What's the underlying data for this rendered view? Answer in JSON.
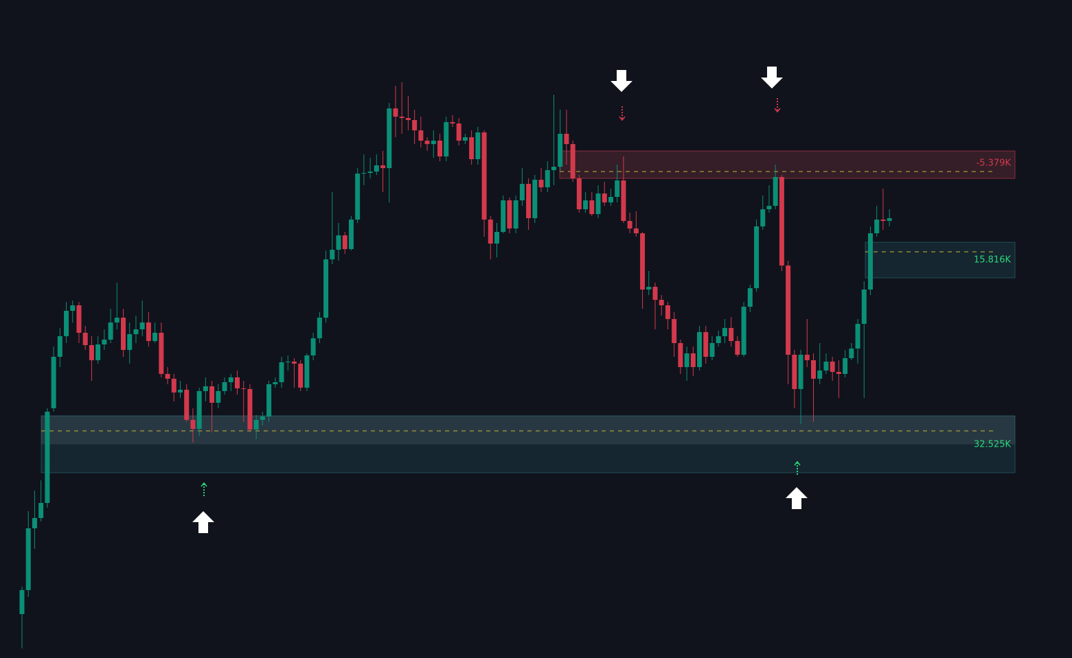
{
  "chart_data": {
    "type": "candlestick",
    "open": [
      105,
      140,
      230,
      245,
      267,
      405,
      480,
      510,
      547,
      555,
      515,
      497,
      475,
      498,
      505,
      530,
      537,
      490,
      513,
      520,
      530,
      503,
      515,
      455,
      448,
      428,
      432,
      388,
      375,
      430,
      437,
      413,
      430,
      443,
      450,
      434,
      433,
      374,
      388,
      393,
      440,
      443,
      472,
      473,
      470,
      435,
      482,
      507,
      537,
      622,
      636,
      657,
      637,
      680,
      747,
      748,
      750,
      759,
      755,
      842,
      830,
      828,
      825,
      810,
      795,
      790,
      795,
      772,
      822,
      820,
      795,
      800,
      768,
      807,
      680,
      645,
      662,
      708,
      667,
      708,
      732,
      682,
      738,
      727,
      752,
      757,
      805,
      790,
      740,
      695,
      708,
      688,
      718,
      705,
      713,
      737,
      678,
      667,
      660,
      578,
      582,
      563,
      555,
      535,
      500,
      465,
      485,
      465,
      516,
      480,
      500,
      510,
      522,
      503,
      483,
      553,
      580,
      670,
      695,
      700,
      742,
      613,
      483,
      433,
      483,
      475,
      448,
      460,
      473,
      458,
      455,
      478,
      492,
      528,
      578,
      660,
      680,
      678
    ],
    "high": [
      145,
      255,
      285,
      300,
      405,
      495,
      522,
      560,
      562,
      560,
      525,
      510,
      510,
      520,
      550,
      588,
      550,
      530,
      540,
      562,
      545,
      530,
      530,
      465,
      455,
      445,
      440,
      405,
      435,
      450,
      445,
      440,
      450,
      455,
      460,
      445,
      440,
      395,
      400,
      445,
      450,
      480,
      482,
      478,
      475,
      485,
      515,
      545,
      635,
      720,
      675,
      662,
      685,
      755,
      775,
      770,
      775,
      780,
      850,
      875,
      880,
      860,
      840,
      830,
      800,
      810,
      805,
      830,
      832,
      828,
      805,
      810,
      815,
      810,
      685,
      675,
      715,
      712,
      715,
      755,
      740,
      745,
      755,
      765,
      862,
      840,
      840,
      795,
      745,
      720,
      720,
      730,
      735,
      725,
      760,
      772,
      690,
      692,
      662,
      605,
      588,
      570,
      560,
      545,
      505,
      495,
      495,
      525,
      525,
      510,
      518,
      535,
      538,
      510,
      560,
      585,
      680,
      715,
      730,
      760,
      745,
      620,
      490,
      490,
      535,
      485,
      500,
      485,
      480,
      475,
      490,
      500,
      535,
      590,
      670,
      700,
      725,
      695
    ],
    "low": [
      55,
      130,
      200,
      240,
      260,
      400,
      465,
      500,
      530,
      500,
      490,
      445,
      470,
      490,
      500,
      520,
      480,
      470,
      500,
      510,
      495,
      500,
      450,
      440,
      415,
      420,
      385,
      355,
      365,
      415,
      370,
      405,
      425,
      430,
      425,
      385,
      370,
      360,
      380,
      385,
      435,
      435,
      460,
      435,
      430,
      430,
      475,
      500,
      530,
      615,
      620,
      630,
      635,
      675,
      730,
      740,
      745,
      720,
      705,
      800,
      805,
      810,
      790,
      785,
      780,
      770,
      765,
      765,
      815,
      788,
      790,
      760,
      760,
      655,
      622,
      625,
      660,
      660,
      660,
      700,
      665,
      675,
      720,
      720,
      730,
      750,
      760,
      735,
      690,
      690,
      685,
      682,
      700,
      700,
      705,
      675,
      660,
      655,
      550,
      570,
      520,
      540,
      520,
      480,
      455,
      445,
      452,
      460,
      470,
      475,
      495,
      500,
      495,
      480,
      480,
      545,
      575,
      665,
      690,
      695,
      605,
      440,
      405,
      382,
      465,
      385,
      440,
      455,
      445,
      420,
      450,
      475,
      470,
      420,
      570,
      655,
      665,
      670
    ],
    "close": [
      140,
      230,
      245,
      267,
      400,
      480,
      510,
      547,
      555,
      515,
      497,
      475,
      498,
      505,
      530,
      537,
      490,
      513,
      520,
      530,
      503,
      515,
      455,
      448,
      428,
      432,
      388,
      375,
      430,
      437,
      413,
      430,
      443,
      450,
      434,
      433,
      374,
      388,
      393,
      440,
      443,
      472,
      473,
      470,
      435,
      482,
      507,
      537,
      622,
      636,
      657,
      637,
      680,
      747,
      748,
      750,
      759,
      755,
      842,
      830,
      828,
      825,
      810,
      795,
      790,
      795,
      772,
      822,
      820,
      795,
      800,
      768,
      807,
      680,
      645,
      662,
      708,
      667,
      708,
      732,
      682,
      738,
      727,
      752,
      757,
      805,
      790,
      740,
      695,
      708,
      688,
      718,
      705,
      713,
      737,
      678,
      667,
      660,
      578,
      582,
      563,
      555,
      535,
      500,
      465,
      485,
      465,
      516,
      480,
      500,
      510,
      522,
      503,
      483,
      553,
      580,
      670,
      695,
      700,
      742,
      613,
      483,
      433,
      483,
      475,
      448,
      460,
      473,
      458,
      455,
      478,
      492,
      528,
      578,
      660,
      680,
      678,
      682
    ],
    "up_color": "#0b8f76",
    "down_color": "#d3394c",
    "ylim": [
      41,
      1000
    ],
    "zones": [
      {
        "label": "-5.379K",
        "top": 780,
        "bottom": 740,
        "level": 750,
        "color": "#d3394c"
      },
      {
        "label": "15.816K",
        "top": 647,
        "bottom": 595,
        "level": 633,
        "color": "#2bd67b"
      },
      {
        "label": "32.525K",
        "top": 394,
        "bottom": 311,
        "level": 372,
        "color": "#2bd67b"
      }
    ]
  }
}
